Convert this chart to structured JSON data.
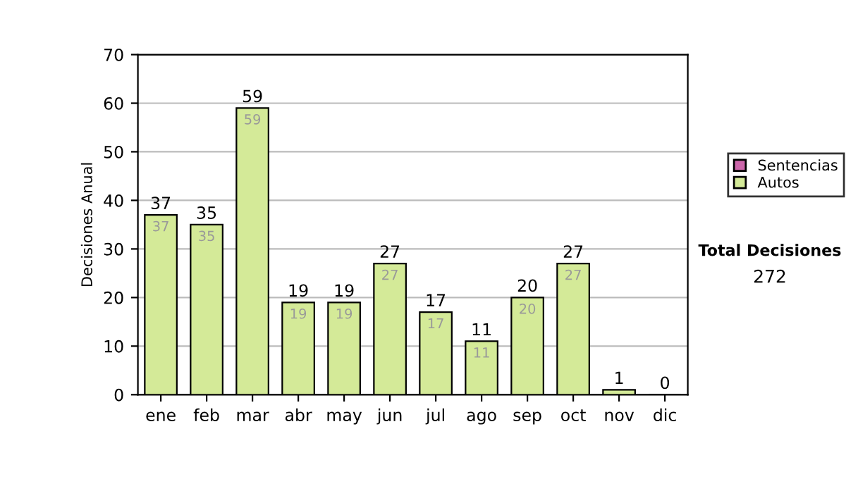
{
  "chart_data": {
    "type": "bar",
    "stacked": true,
    "ylabel": "Decisiones Anual",
    "categories": [
      "ene",
      "feb",
      "mar",
      "abr",
      "may",
      "jun",
      "jul",
      "ago",
      "sep",
      "oct",
      "nov",
      "dic"
    ],
    "series": [
      {
        "name": "Sentencias",
        "color": "#cc66aa",
        "values": [
          0,
          0,
          0,
          0,
          0,
          0,
          0,
          0,
          0,
          0,
          0,
          0
        ]
      },
      {
        "name": "Autos",
        "color": "#d4ea98",
        "values": [
          37,
          35,
          59,
          19,
          19,
          27,
          17,
          11,
          20,
          27,
          1,
          0
        ],
        "value_labels": [
          "37",
          "35",
          "59",
          "19",
          "19",
          "27",
          "17",
          "11",
          "20",
          "27",
          null,
          null
        ]
      }
    ],
    "totals": [
      "37",
      "35",
      "59",
      "19",
      "19",
      "27",
      "17",
      "11",
      "20",
      "27",
      "1",
      "0"
    ],
    "ylim": [
      0,
      70
    ],
    "yticks": [
      0,
      10,
      20,
      30,
      40,
      50,
      60,
      70
    ],
    "grid": "y",
    "legend": "right",
    "annotations": [
      "Total Decisiones",
      "272"
    ]
  }
}
